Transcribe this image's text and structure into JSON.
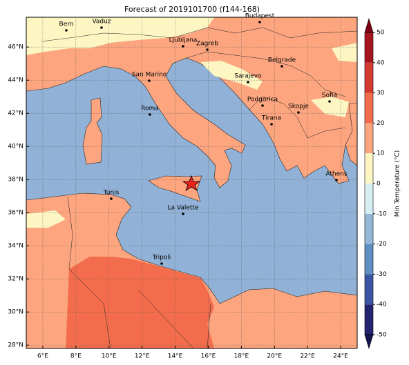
{
  "title": "Forecast of 2019101700 (f144-168)",
  "map": {
    "xlim": [
      5,
      25
    ],
    "ylim": [
      27.8,
      47.8
    ],
    "xticks": [
      {
        "value": 6,
        "label": "6°E"
      },
      {
        "value": 8,
        "label": "8°E"
      },
      {
        "value": 10,
        "label": "10°E"
      },
      {
        "value": 12,
        "label": "12°E"
      },
      {
        "value": 14,
        "label": "14°E"
      },
      {
        "value": 16,
        "label": "16°E"
      },
      {
        "value": 18,
        "label": "18°E"
      },
      {
        "value": 20,
        "label": "20°E"
      },
      {
        "value": 22,
        "label": "22°E"
      },
      {
        "value": 24,
        "label": "24°E"
      }
    ],
    "yticks": [
      {
        "value": 28,
        "label": "28°N"
      },
      {
        "value": 30,
        "label": "30°N"
      },
      {
        "value": 32,
        "label": "32°N"
      },
      {
        "value": 34,
        "label": "34°N"
      },
      {
        "value": 36,
        "label": "36°N"
      },
      {
        "value": 38,
        "label": "38°N"
      },
      {
        "value": 40,
        "label": "40°N"
      },
      {
        "value": 42,
        "label": "42°N"
      },
      {
        "value": 44,
        "label": "44°N"
      },
      {
        "value": 46,
        "label": "46°N"
      }
    ],
    "grid": true,
    "cities": [
      "Bern",
      "Vaduz",
      "Budapest",
      "Ljubljana",
      "Zagreb",
      "Belgrade",
      "Sarajevo",
      "San Marino",
      "Sofia",
      "Podgorica",
      "Skopje",
      "Roma",
      "Tirana",
      "Athens",
      "Tunis",
      "La Valette",
      "Tripoli"
    ]
  },
  "colorbar": {
    "label": "Min Temperature (°C)",
    "lim": [
      -50,
      50
    ],
    "ticks": [
      -50,
      -40,
      -30,
      -20,
      -10,
      0,
      10,
      20,
      30,
      40,
      50
    ],
    "colors": [
      "#23246f",
      "#3b56a3",
      "#5f8fc1",
      "#93b8d8",
      "#d8eef5",
      "#fdf6c3",
      "#fca57f",
      "#f36d4c",
      "#d23a2e",
      "#a5141f"
    ],
    "extend_colors": [
      "#14144f",
      "#7f0015"
    ]
  }
}
